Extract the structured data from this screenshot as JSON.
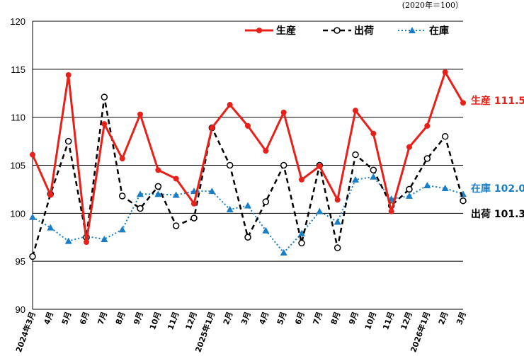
{
  "chart_data": {
    "type": "line",
    "title": "",
    "unit_note": "(2020年＝100）",
    "xlabel": "",
    "ylabel": "",
    "ylim": [
      90,
      120
    ],
    "yticks": [
      90,
      95,
      100,
      105,
      110,
      115,
      120
    ],
    "grid": true,
    "legend_position": "top-right",
    "categories": [
      "2024年3月",
      "4月",
      "5月",
      "6月",
      "7月",
      "8月",
      "9月",
      "10月",
      "11月",
      "12月",
      "2025年1月",
      "2月",
      "3月",
      "4月",
      "5月",
      "6月",
      "7月",
      "8月",
      "9月",
      "10月",
      "11月",
      "12月",
      "2026年1月",
      "2月",
      "3月"
    ],
    "series": [
      {
        "name": "生産",
        "color": "#e8201a",
        "marker": "filled-circle",
        "line": "solid",
        "values": [
          106.1,
          101.9,
          114.4,
          97.0,
          109.3,
          105.7,
          110.3,
          104.5,
          103.6,
          101.0,
          108.9,
          111.3,
          109.1,
          106.5,
          110.5,
          103.5,
          104.9,
          101.4,
          110.7,
          108.3,
          100.2,
          106.9,
          109.1,
          114.7,
          111.5
        ],
        "end_label": "生産 111.5"
      },
      {
        "name": "出荷",
        "color": "#000000",
        "marker": "open-circle",
        "line": "dashed",
        "values": [
          95.5,
          102.0,
          107.5,
          97.5,
          112.1,
          101.8,
          100.5,
          102.8,
          98.7,
          99.5,
          108.9,
          105.0,
          97.5,
          101.2,
          105.0,
          96.9,
          105.0,
          96.4,
          106.1,
          104.5,
          100.8,
          102.5,
          105.7,
          108.0,
          101.3
        ],
        "end_label": "出荷 101.3"
      },
      {
        "name": "在庫",
        "color": "#1a7ec6",
        "marker": "filled-triangle",
        "line": "dotted",
        "values": [
          99.6,
          98.5,
          97.1,
          97.6,
          97.3,
          98.3,
          102.0,
          102.0,
          101.9,
          102.3,
          102.3,
          100.4,
          100.8,
          98.2,
          95.9,
          97.9,
          100.2,
          99.1,
          103.5,
          103.8,
          101.5,
          101.8,
          102.9,
          102.6,
          102.0
        ],
        "end_label": "在庫 102.0"
      }
    ]
  }
}
